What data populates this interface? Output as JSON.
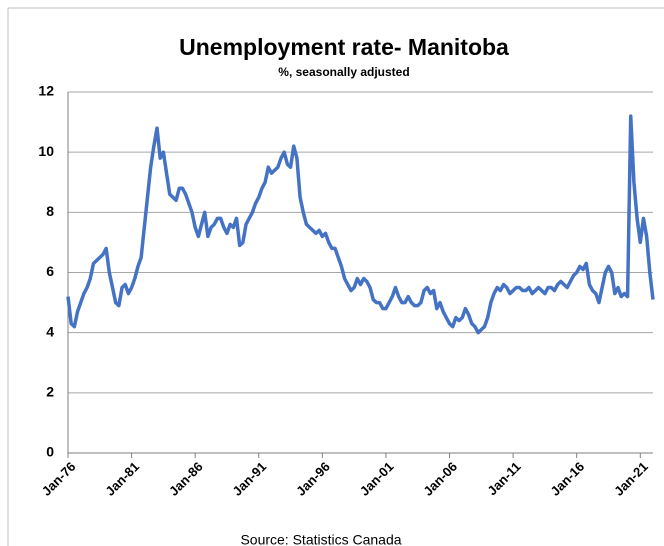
{
  "chart_data": {
    "type": "line",
    "title": "Unemployment rate- Manitoba",
    "subtitle": "%, seasonally adjusted",
    "source": "Source: Statistics Canada",
    "categories": [
      "Jan-76",
      null,
      null,
      null,
      null,
      null,
      null,
      null,
      null,
      null,
      null,
      null,
      null,
      null,
      null,
      null,
      null,
      null,
      null,
      null,
      "Jan-81",
      null,
      null,
      null,
      null,
      null,
      null,
      null,
      null,
      null,
      null,
      null,
      null,
      null,
      null,
      null,
      null,
      null,
      null,
      null,
      "Jan-86",
      null,
      null,
      null,
      null,
      null,
      null,
      null,
      null,
      null,
      null,
      null,
      null,
      null,
      null,
      null,
      null,
      null,
      null,
      null,
      "Jan-91",
      null,
      null,
      null,
      null,
      null,
      null,
      null,
      null,
      null,
      null,
      null,
      null,
      null,
      null,
      null,
      null,
      null,
      null,
      null,
      "Jan-96",
      null,
      null,
      null,
      null,
      null,
      null,
      null,
      null,
      null,
      null,
      null,
      null,
      null,
      null,
      null,
      null,
      null,
      null,
      null,
      "Jan-01",
      null,
      null,
      null,
      null,
      null,
      null,
      null,
      null,
      null,
      null,
      null,
      null,
      null,
      null,
      null,
      null,
      null,
      null,
      null,
      "Jan-06",
      null,
      null,
      null,
      null,
      null,
      null,
      null,
      null,
      null,
      null,
      null,
      null,
      null,
      null,
      null,
      null,
      null,
      null,
      null,
      "Jan-11",
      null,
      null,
      null,
      null,
      null,
      null,
      null,
      null,
      null,
      null,
      null,
      null,
      null,
      null,
      null,
      null,
      null,
      null,
      null,
      "Jan-16",
      null,
      null,
      null,
      null,
      null,
      null,
      null,
      null,
      null,
      null,
      null,
      null,
      null,
      null,
      null,
      null,
      null,
      null,
      null,
      "Jan-21",
      null,
      null,
      null,
      null
    ],
    "series": [
      {
        "name": "Unemployment rate",
        "color": "#4472c4",
        "values": [
          5.2,
          4.3,
          4.2,
          4.7,
          5.0,
          5.3,
          5.5,
          5.8,
          6.3,
          6.4,
          6.5,
          6.6,
          6.8,
          6.0,
          5.5,
          5.0,
          4.9,
          5.5,
          5.6,
          5.3,
          5.5,
          5.8,
          6.2,
          6.5,
          7.5,
          8.5,
          9.5,
          10.2,
          10.8,
          9.8,
          10.0,
          9.3,
          8.6,
          8.5,
          8.4,
          8.8,
          8.8,
          8.6,
          8.3,
          8.0,
          7.5,
          7.2,
          7.6,
          8.0,
          7.2,
          7.5,
          7.6,
          7.8,
          7.8,
          7.5,
          7.3,
          7.6,
          7.5,
          7.8,
          6.9,
          7.0,
          7.6,
          7.8,
          8.0,
          8.3,
          8.5,
          8.8,
          9.0,
          9.5,
          9.3,
          9.4,
          9.5,
          9.8,
          10.0,
          9.6,
          9.5,
          10.2,
          9.8,
          8.5,
          8.0,
          7.6,
          7.5,
          7.4,
          7.3,
          7.4,
          7.2,
          7.3,
          7.0,
          6.8,
          6.8,
          6.5,
          6.2,
          5.8,
          5.6,
          5.4,
          5.5,
          5.8,
          5.6,
          5.8,
          5.7,
          5.5,
          5.1,
          5.0,
          5.0,
          4.8,
          4.8,
          5.0,
          5.2,
          5.5,
          5.2,
          5.0,
          5.0,
          5.2,
          5.0,
          4.9,
          4.9,
          5.0,
          5.4,
          5.5,
          5.3,
          5.4,
          4.8,
          5.0,
          4.7,
          4.5,
          4.3,
          4.2,
          4.5,
          4.4,
          4.5,
          4.8,
          4.6,
          4.3,
          4.2,
          4.0,
          4.1,
          4.2,
          4.5,
          5.0,
          5.3,
          5.5,
          5.4,
          5.6,
          5.5,
          5.3,
          5.4,
          5.5,
          5.5,
          5.4,
          5.4,
          5.5,
          5.3,
          5.4,
          5.5,
          5.4,
          5.3,
          5.5,
          5.5,
          5.4,
          5.6,
          5.7,
          5.6,
          5.5,
          5.7,
          5.9,
          6.0,
          6.2,
          6.1,
          6.3,
          5.6,
          5.4,
          5.3,
          5.0,
          5.5,
          6.0,
          6.2,
          6.0,
          5.3,
          5.5,
          5.2,
          5.3,
          5.2,
          11.2,
          9.0,
          7.8,
          7.0,
          7.8,
          7.2,
          6.0,
          5.1
        ]
      }
    ],
    "ylim": [
      0,
      12
    ],
    "yticks": [
      0,
      2,
      4,
      6,
      8,
      10,
      12
    ],
    "grid": true
  }
}
